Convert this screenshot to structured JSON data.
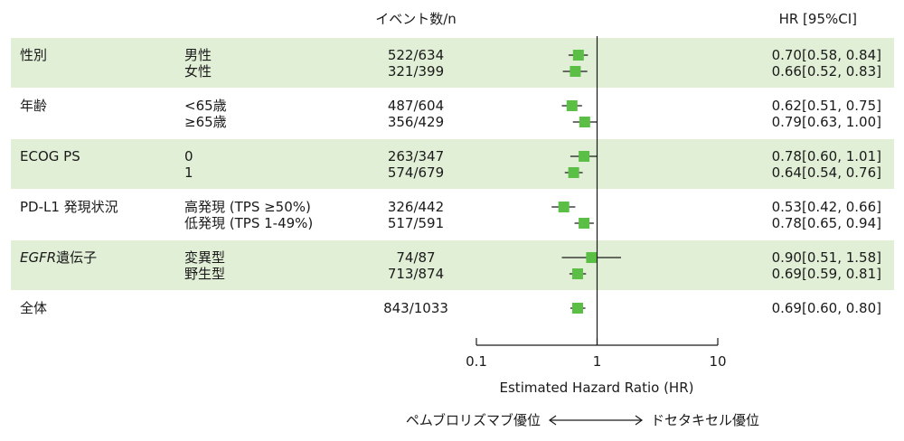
{
  "header": {
    "events_label": "イベント数/n",
    "hr_label": "HR [95%CI]"
  },
  "favor": {
    "left": "ペムブロリズマブ優位",
    "right": "ドセタキセル優位",
    "arrow": "←———→"
  },
  "chart_data": {
    "type": "forest",
    "title": "",
    "xlabel": "Estimated Hazard Ratio (HR)",
    "xscale": "log",
    "xlim": [
      0.1,
      10
    ],
    "ticks": [
      0.1,
      1,
      10
    ],
    "tick_labels": [
      "0.1",
      "1",
      "10"
    ],
    "reference_line": 1,
    "point_color": "#5cbf45",
    "band_color": "#e2efd7",
    "groups": [
      {
        "name": "性別",
        "shaded": true,
        "italic_prefix": "",
        "name_suffix": "性別",
        "rows": [
          {
            "label": "男性",
            "events": "522/634",
            "hr": 0.7,
            "lo": 0.58,
            "hi": 0.84,
            "ci_text": "0.70[0.58, 0.84]"
          },
          {
            "label": "女性",
            "events": "321/399",
            "hr": 0.66,
            "lo": 0.52,
            "hi": 0.83,
            "ci_text": "0.66[0.52, 0.83]"
          }
        ]
      },
      {
        "name": "年齢",
        "shaded": false,
        "italic_prefix": "",
        "name_suffix": "年齢",
        "rows": [
          {
            "label": "<65歳",
            "events": "487/604",
            "hr": 0.62,
            "lo": 0.51,
            "hi": 0.75,
            "ci_text": "0.62[0.51, 0.75]"
          },
          {
            "label": "≥65歳",
            "events": "356/429",
            "hr": 0.79,
            "lo": 0.63,
            "hi": 1.0,
            "ci_text": "0.79[0.63, 1.00]"
          }
        ]
      },
      {
        "name": "ECOG PS",
        "shaded": true,
        "italic_prefix": "",
        "name_suffix": "ECOG PS",
        "rows": [
          {
            "label": "0",
            "events": "263/347",
            "hr": 0.78,
            "lo": 0.6,
            "hi": 1.01,
            "ci_text": "0.78[0.60, 1.01]"
          },
          {
            "label": "1",
            "events": "574/679",
            "hr": 0.64,
            "lo": 0.54,
            "hi": 0.76,
            "ci_text": "0.64[0.54, 0.76]"
          }
        ]
      },
      {
        "name": "PD-L1 発現状況",
        "shaded": false,
        "italic_prefix": "",
        "name_suffix": "PD-L1 発現状況",
        "rows": [
          {
            "label": "高発現 (TPS ≥50%)",
            "events": "326/442",
            "hr": 0.53,
            "lo": 0.42,
            "hi": 0.66,
            "ci_text": "0.53[0.42, 0.66]"
          },
          {
            "label": "低発現 (TPS 1-49%)",
            "events": "517/591",
            "hr": 0.78,
            "lo": 0.65,
            "hi": 0.94,
            "ci_text": "0.78[0.65, 0.94]"
          }
        ]
      },
      {
        "name": "EGFR遺伝子",
        "shaded": true,
        "italic_prefix": "EGFR",
        "name_suffix": "遺伝子",
        "rows": [
          {
            "label": "変異型",
            "events": "74/87",
            "hr": 0.9,
            "lo": 0.51,
            "hi": 1.58,
            "ci_text": "0.90[0.51, 1.58]"
          },
          {
            "label": "野生型",
            "events": "713/874",
            "hr": 0.69,
            "lo": 0.59,
            "hi": 0.81,
            "ci_text": "0.69[0.59, 0.81]"
          }
        ]
      },
      {
        "name": "全体",
        "shaded": false,
        "italic_prefix": "",
        "name_suffix": "全体",
        "rows": [
          {
            "label": "",
            "events": "843/1033",
            "hr": 0.69,
            "lo": 0.6,
            "hi": 0.8,
            "ci_text": "0.69[0.60, 0.80]"
          }
        ]
      }
    ]
  }
}
